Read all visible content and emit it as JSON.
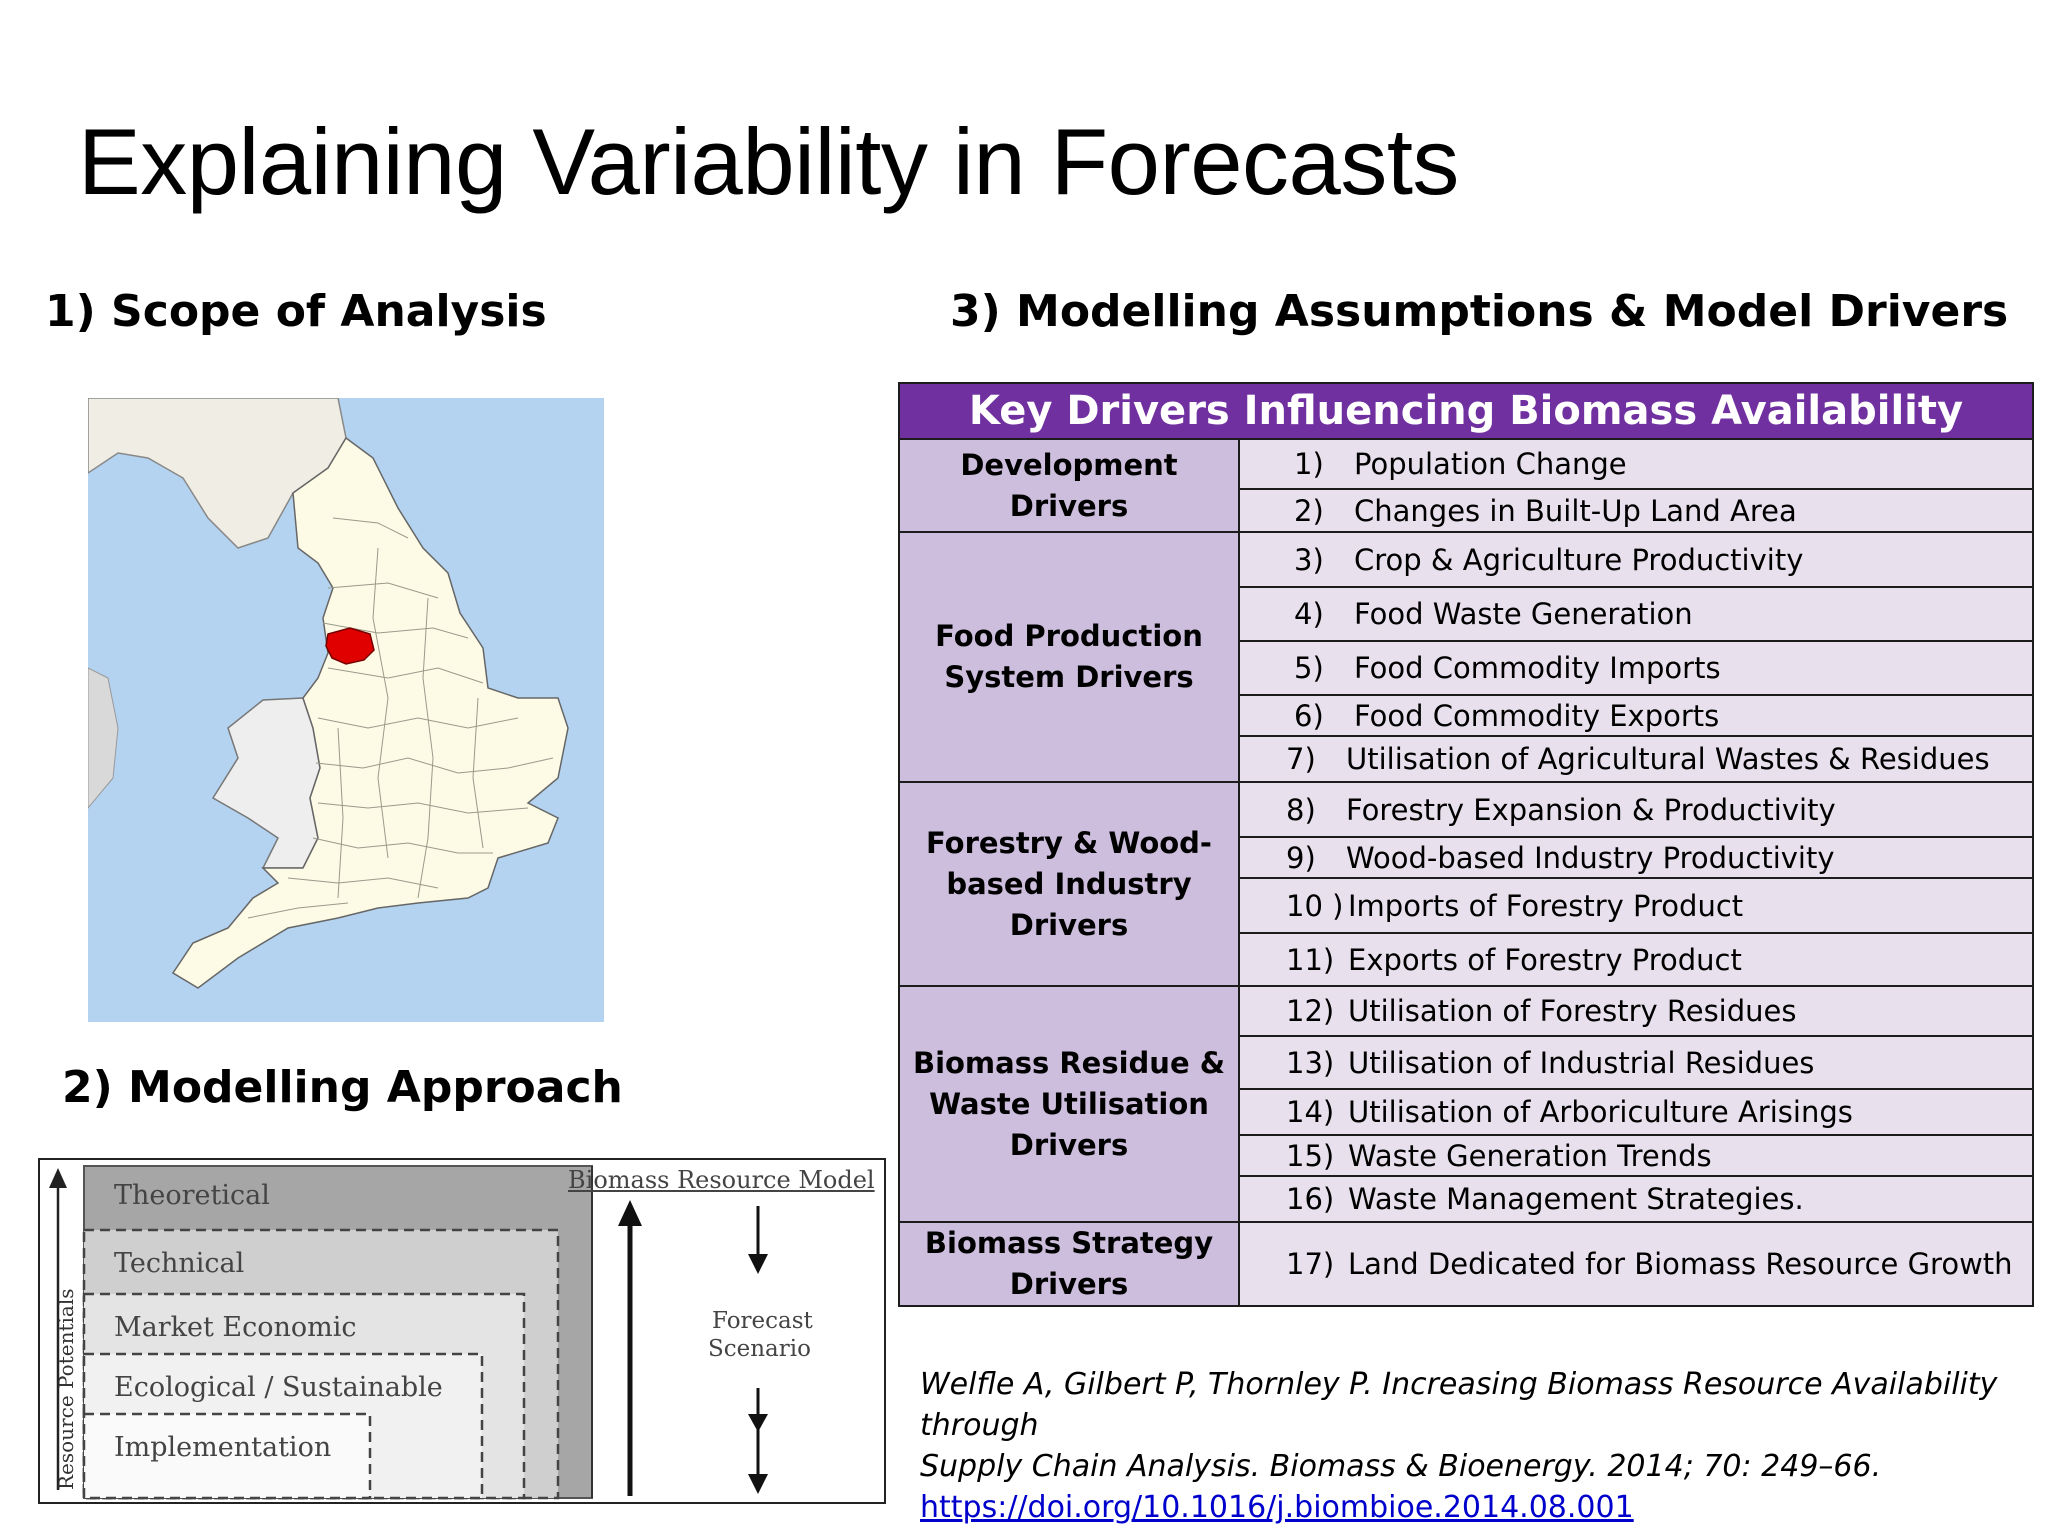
{
  "slide": {
    "title": "Explaining Variability in Forecasts"
  },
  "sections": {
    "scope": "1) Scope of Analysis",
    "approach": "2) Modelling Approach",
    "assumptions": "3) Modelling Assumptions & Model Drivers"
  },
  "approach_diagram": {
    "levels": [
      "Theoretical",
      "Technical",
      "Market Economic",
      "Ecological / Sustainable",
      "Implementation"
    ],
    "y_axis_label": "Resource Potentials",
    "model_label": "Biomass Resource Model",
    "forecast_label_line1": "Forecast",
    "forecast_label_line2": "Scenario"
  },
  "drivers_table": {
    "header": "Key Drivers Influencing Biomass Availability",
    "groups": [
      {
        "name_lines": [
          "Development Drivers"
        ],
        "items": [
          {
            "num": "1)",
            "label": "Population Change"
          },
          {
            "num": "2)",
            "label": "Changes in Built-Up Land Area"
          }
        ]
      },
      {
        "name_lines": [
          "Food Production",
          "System Drivers"
        ],
        "items": [
          {
            "num": "3)",
            "label": "Crop & Agriculture Productivity"
          },
          {
            "num": "4)",
            "label": "Food Waste Generation"
          },
          {
            "num": "5)",
            "label": "Food Commodity Imports"
          },
          {
            "num": "6)",
            "label": "Food Commodity Exports"
          },
          {
            "num": "7)",
            "label": "Utilisation of Agricultural Wastes & Residues"
          }
        ]
      },
      {
        "name_lines": [
          "Forestry & Wood-",
          "based Industry",
          "Drivers"
        ],
        "items": [
          {
            "num": "8)",
            "label": "Forestry Expansion & Productivity"
          },
          {
            "num": "9)",
            "label": "Wood-based Industry Productivity"
          },
          {
            "num": "10 )",
            "label": "Imports of Forestry Product"
          },
          {
            "num": "11)",
            "label": "Exports of Forestry Product"
          }
        ]
      },
      {
        "name_lines": [
          "Biomass Residue &",
          "Waste Utilisation",
          "Drivers"
        ],
        "items": [
          {
            "num": "12)",
            "label": "Utilisation of Forestry Residues"
          },
          {
            "num": "13)",
            "label": "Utilisation of Industrial Residues"
          },
          {
            "num": "14)",
            "label": "Utilisation of Arboriculture Arisings"
          },
          {
            "num": "15)",
            "label": "Waste Generation Trends"
          },
          {
            "num": "16)",
            "label": "Waste Management Strategies."
          }
        ]
      },
      {
        "name_lines": [
          "Biomass Strategy",
          "Drivers"
        ],
        "items": [
          {
            "num": "17)",
            "label": "Land Dedicated for Biomass Resource Growth"
          }
        ]
      }
    ]
  },
  "reference": {
    "citation_line1": "Welfle A, Gilbert P, Thornley P. Increasing Biomass Resource Availability through",
    "citation_line2": "Supply Chain Analysis. Biomass & Bioenergy. 2014; 70: 249–66.",
    "link": "https://doi.org/10.1016/j.biombioe.2014.08.001"
  },
  "colors": {
    "table_header": "#7030a0",
    "category_cell": "#ccbedc",
    "item_cell": "#e8e0ec",
    "highlight_region": "#e00000",
    "sea": "#b4d3f0",
    "land": "#fdfbe6"
  }
}
